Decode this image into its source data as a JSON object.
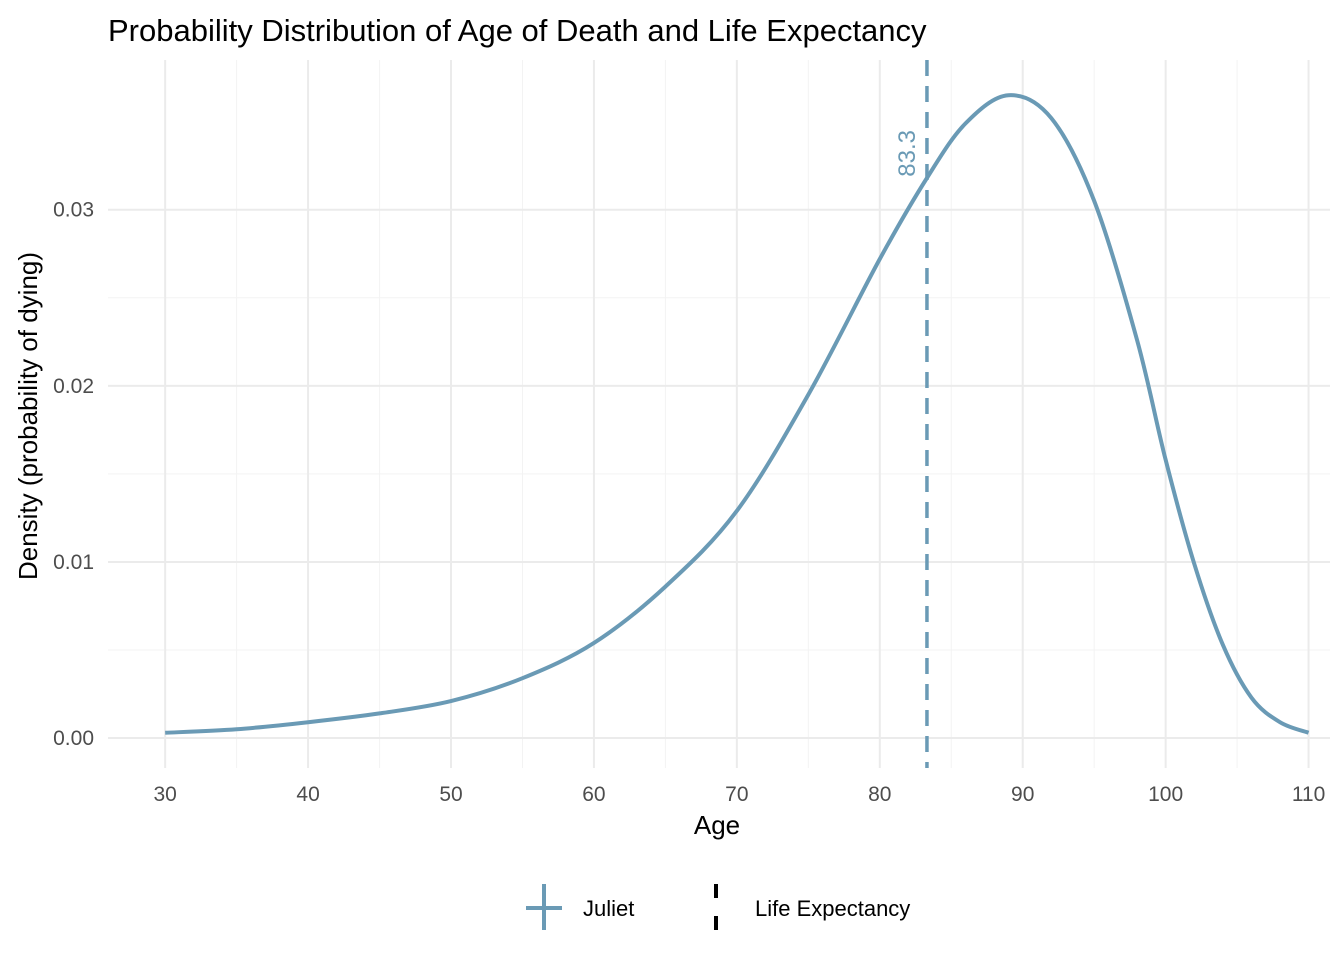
{
  "chart_data": {
    "type": "line",
    "title": "Probability Distribution of Age of Death and Life Expectancy",
    "xlabel": "Age",
    "ylabel": "Density (probability of dying)",
    "xlim": [
      26,
      111.5
    ],
    "ylim": [
      -0.0017,
      0.0385
    ],
    "x_ticks": [
      30,
      40,
      50,
      60,
      70,
      80,
      90,
      100,
      110
    ],
    "x_tick_labels": [
      "30",
      "40",
      "50",
      "60",
      "70",
      "80",
      "90",
      "100",
      "110"
    ],
    "y_ticks": [
      0,
      0.01,
      0.02,
      0.03
    ],
    "y_tick_labels": [
      "0.00",
      "0.01",
      "0.02",
      "0.03"
    ],
    "grid": true,
    "legend_position": "bottom",
    "series": [
      {
        "name": "Juliet",
        "color": "#6a9ab5",
        "x": [
          30,
          35,
          40,
          45,
          50,
          55,
          60,
          65,
          70,
          75,
          80,
          83.3,
          86,
          89,
          92,
          95,
          98,
          100,
          102,
          104,
          106,
          108,
          110
        ],
        "y": [
          0.0003,
          0.0005,
          0.0009,
          0.0014,
          0.0021,
          0.0034,
          0.0054,
          0.0086,
          0.0129,
          0.0195,
          0.0272,
          0.0318,
          0.0349,
          0.0365,
          0.0352,
          0.0305,
          0.0226,
          0.0158,
          0.0099,
          0.0053,
          0.0023,
          0.0009,
          0.0003
        ]
      }
    ],
    "vline": {
      "name": "Life Expectancy",
      "x": 83.3,
      "label": "83.3",
      "color": "#6a9ab5",
      "style": "dashed"
    }
  }
}
